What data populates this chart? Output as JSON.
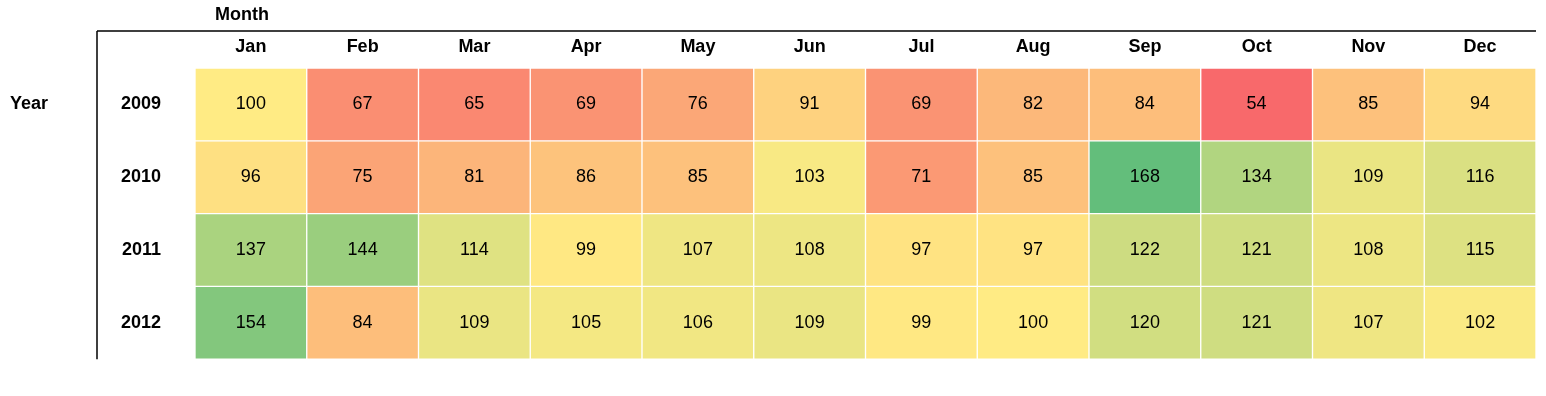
{
  "chart_data": {
    "type": "heatmap",
    "data_labels": true,
    "xlabel": "Month",
    "ylabel": "Year",
    "categories": [
      "Jan",
      "Feb",
      "Mar",
      "Apr",
      "May",
      "Jun",
      "Jul",
      "Aug",
      "Sep",
      "Oct",
      "Nov",
      "Dec"
    ],
    "y_categories": [
      "2009",
      "2010",
      "2011",
      "2012"
    ],
    "cells": [
      [
        100,
        67,
        65,
        69,
        76,
        91,
        69,
        82,
        84,
        54,
        85,
        94
      ],
      [
        96,
        75,
        81,
        86,
        85,
        103,
        71,
        85,
        168,
        134,
        109,
        116
      ],
      [
        137,
        144,
        114,
        99,
        107,
        108,
        97,
        97,
        122,
        121,
        108,
        115
      ],
      [
        154,
        84,
        109,
        105,
        106,
        109,
        99,
        100,
        120,
        121,
        107,
        102
      ]
    ]
  }
}
